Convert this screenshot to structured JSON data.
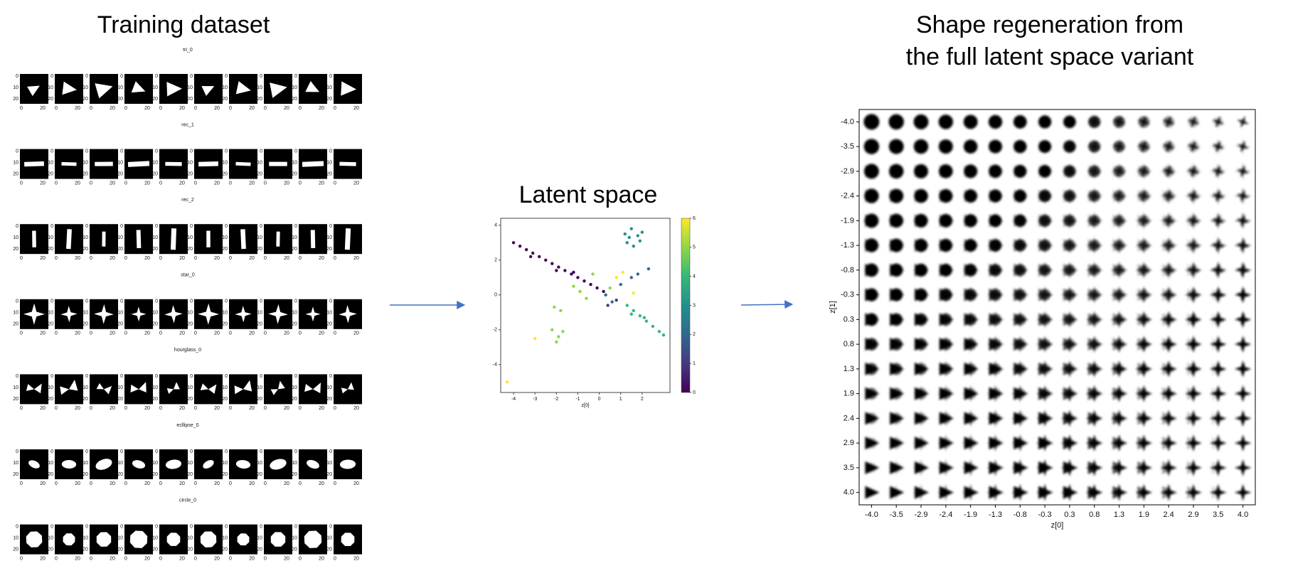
{
  "training": {
    "title": "Training dataset",
    "rows": [
      "tri_0",
      "rec_1",
      "rec_2",
      "star_0",
      "hourglass_0",
      "ecllipse_0",
      "circle_0"
    ],
    "yticks": [
      0,
      10,
      20
    ],
    "xticks": [
      0,
      20
    ]
  },
  "latent_space": {
    "type": "scatter",
    "title": "Latent space",
    "xlabel": "z[0]",
    "x": [
      -4,
      -3.7,
      -3.4,
      -3.1,
      -2.8,
      -2.5,
      -2.2,
      -1.9,
      -1.6,
      -1.3,
      -1.0,
      -0.7,
      -0.4,
      -0.1,
      0.2,
      -3.2,
      -2.0,
      -1.2,
      1.2,
      1.5,
      1.8,
      1.3,
      1.6,
      1.9,
      1.4,
      2.0,
      1.3,
      1.6,
      1.9,
      2.2,
      2.5,
      2.8,
      3.0,
      1.5,
      2.1,
      -2.2,
      -1.9,
      -2.0,
      -1.7,
      -2.1,
      -1.8,
      -1.2,
      -0.9,
      -0.6,
      0.5,
      -0.3,
      0.3,
      0.6,
      1.0,
      1.5,
      2.3,
      1.8,
      0.8,
      0.4,
      1.1,
      0.8,
      -4.3,
      -3.0,
      1.6
    ],
    "y": [
      3.0,
      2.8,
      2.6,
      2.4,
      2.2,
      2.0,
      1.8,
      1.6,
      1.4,
      1.2,
      1.0,
      0.8,
      0.6,
      0.4,
      0.2,
      2.2,
      1.4,
      1.3,
      3.5,
      3.8,
      3.4,
      3.0,
      2.8,
      3.1,
      3.3,
      3.6,
      -0.6,
      -0.9,
      -1.2,
      -1.5,
      -1.8,
      -2.1,
      -2.3,
      -1.1,
      -1.3,
      -2.0,
      -2.4,
      -2.7,
      -2.1,
      -0.7,
      -0.9,
      0.5,
      0.2,
      -0.2,
      0.4,
      1.2,
      0.0,
      -0.4,
      0.6,
      1.0,
      1.5,
      1.2,
      -0.3,
      -0.6,
      1.3,
      1.0,
      -5.0,
      -2.5,
      0.1
    ],
    "c": [
      0,
      0,
      0,
      0,
      0,
      0,
      0,
      0,
      0,
      0,
      0,
      0,
      0,
      0,
      0,
      0,
      0,
      0,
      3,
      3,
      3,
      3,
      3,
      3,
      3,
      3,
      4,
      4,
      4,
      4,
      4,
      4,
      4,
      4,
      4,
      5,
      5,
      5,
      5,
      5,
      5,
      5,
      5,
      5,
      5,
      5,
      2,
      2,
      2,
      2,
      2,
      2,
      1,
      1,
      6,
      6,
      6,
      6,
      6
    ],
    "colormap": [
      "#440154",
      "#443983",
      "#31688e",
      "#21918c",
      "#35b779",
      "#90d743",
      "#fde725"
    ],
    "xlim": [
      -4.6,
      3.3
    ],
    "ylim": [
      -5.6,
      4.4
    ],
    "xticks": [
      -4,
      -3,
      -2,
      -1,
      0,
      1,
      2
    ],
    "yticks": [
      -4,
      -2,
      0,
      2,
      4
    ],
    "clim": [
      0,
      6
    ],
    "cticks": [
      0,
      1,
      2,
      3,
      4,
      5,
      6
    ]
  },
  "regeneration": {
    "title_lines": [
      "Shape regeneration from",
      "the full latent space variant"
    ],
    "ticks": [
      "-4.0",
      "-3.5",
      "-2.9",
      "-2.4",
      "-1.9",
      "-1.3",
      "-0.8",
      "-0.3",
      "0.3",
      "0.8",
      "1.3",
      "1.9",
      "2.4",
      "2.9",
      "3.5",
      "4.0"
    ],
    "xlabel": "z[0]",
    "ylabel": "z[1]"
  }
}
